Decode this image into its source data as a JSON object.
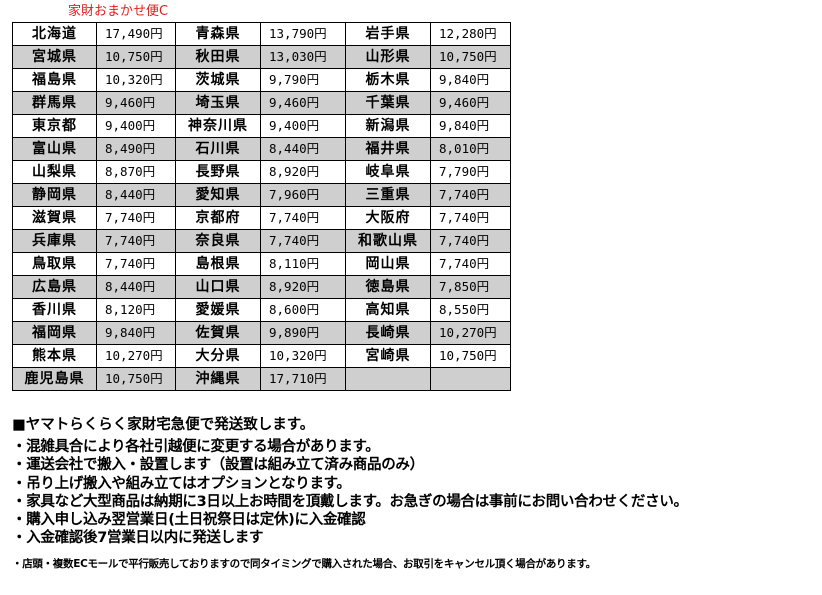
{
  "caption": "家財おまかせ便C",
  "rows": [
    [
      [
        "北海道",
        "17,490円"
      ],
      [
        "青森県",
        "13,790円"
      ],
      [
        "岩手県",
        "12,280円"
      ]
    ],
    [
      [
        "宮城県",
        "10,750円"
      ],
      [
        "秋田県",
        "13,030円"
      ],
      [
        "山形県",
        "10,750円"
      ]
    ],
    [
      [
        "福島県",
        "10,320円"
      ],
      [
        "茨城県",
        "9,790円"
      ],
      [
        "栃木県",
        "9,840円"
      ]
    ],
    [
      [
        "群馬県",
        "9,460円"
      ],
      [
        "埼玉県",
        "9,460円"
      ],
      [
        "千葉県",
        "9,460円"
      ]
    ],
    [
      [
        "東京都",
        "9,400円"
      ],
      [
        "神奈川県",
        "9,400円"
      ],
      [
        "新潟県",
        "9,840円"
      ]
    ],
    [
      [
        "富山県",
        "8,490円"
      ],
      [
        "石川県",
        "8,440円"
      ],
      [
        "福井県",
        "8,010円"
      ]
    ],
    [
      [
        "山梨県",
        "8,870円"
      ],
      [
        "長野県",
        "8,920円"
      ],
      [
        "岐阜県",
        "7,790円"
      ]
    ],
    [
      [
        "静岡県",
        "8,440円"
      ],
      [
        "愛知県",
        "7,960円"
      ],
      [
        "三重県",
        "7,740円"
      ]
    ],
    [
      [
        "滋賀県",
        "7,740円"
      ],
      [
        "京都府",
        "7,740円"
      ],
      [
        "大阪府",
        "7,740円"
      ]
    ],
    [
      [
        "兵庫県",
        "7,740円"
      ],
      [
        "奈良県",
        "7,740円"
      ],
      [
        "和歌山県",
        "7,740円"
      ]
    ],
    [
      [
        "鳥取県",
        "7,740円"
      ],
      [
        "島根県",
        "8,110円"
      ],
      [
        "岡山県",
        "7,740円"
      ]
    ],
    [
      [
        "広島県",
        "8,440円"
      ],
      [
        "山口県",
        "8,920円"
      ],
      [
        "徳島県",
        "7,850円"
      ]
    ],
    [
      [
        "香川県",
        "8,120円"
      ],
      [
        "愛媛県",
        "8,600円"
      ],
      [
        "高知県",
        "8,550円"
      ]
    ],
    [
      [
        "福岡県",
        "9,840円"
      ],
      [
        "佐賀県",
        "9,890円"
      ],
      [
        "長崎県",
        "10,270円"
      ]
    ],
    [
      [
        "熊本県",
        "10,270円"
      ],
      [
        "大分県",
        "10,320円"
      ],
      [
        "宮崎県",
        "10,750円"
      ]
    ],
    [
      [
        "鹿児島県",
        "10,750円"
      ],
      [
        "沖縄県",
        "17,710円"
      ],
      [
        "",
        ""
      ]
    ]
  ],
  "notes": {
    "heading": "■ヤマトらくらく家財宅急便で発送致します。",
    "items": [
      "・混雑具合により各社引越便に変更する場合があります。",
      "・運送会社で搬入・設置します（設置は組み立て済み商品のみ）",
      "・吊り上げ搬入や組み立てはオプションとなります。",
      "・家具など大型商品は納期に3日以上お時間を頂戴します。お急ぎの場合は事前にお問い合わせください。",
      "・購入申し込み翌営業日(土日祝祭日は定休)に入金確認",
      "・入金確認後7営業日以内に発送します"
    ],
    "footnote": "・店頭・複数ECモールで平行販売しておりますので同タイミングで購入された場合、お取引をキャンセル頂く場合があります。"
  }
}
